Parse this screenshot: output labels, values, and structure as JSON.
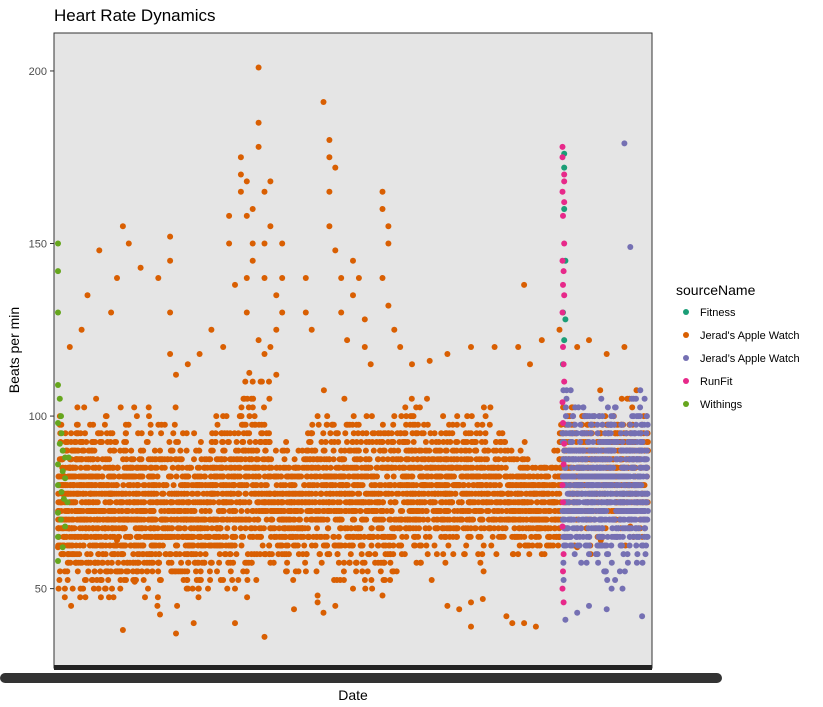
{
  "chart_data": {
    "type": "scatter",
    "title": "Heart Rate Dynamics",
    "xlabel": "Date",
    "ylabel": "Beats per min",
    "ylim": [
      27,
      211
    ],
    "yticks": [
      50,
      100,
      150,
      200
    ],
    "x_tick_labels": "dense, overplotted (illegible)",
    "grid": false,
    "panel_background": "#e5e5e5",
    "legend": {
      "title": "sourceName",
      "position": "right",
      "entries": [
        {
          "name": "Fitness",
          "color": "#1b9e77"
        },
        {
          "name": "Jerad's Apple Watch",
          "color": "#d95f02"
        },
        {
          "name": "Jerad’s Apple Watch",
          "color": "#7570b3"
        },
        {
          "name": "RunFit",
          "color": "#e7298a"
        },
        {
          "name": "Withings",
          "color": "#66a61e"
        }
      ]
    },
    "series": [
      {
        "name": "Fitness",
        "color": "#1b9e77",
        "points": [
          [
            0.858,
            176
          ],
          [
            0.858,
            172
          ],
          [
            0.858,
            160
          ],
          [
            0.86,
            145
          ],
          [
            0.856,
            130
          ],
          [
            0.86,
            128
          ],
          [
            0.858,
            122
          ],
          [
            0.856,
            115
          ]
        ]
      },
      {
        "name": "Jerad's Apple Watch",
        "color": "#d95f02",
        "bands": [
          {
            "x0": 0.0,
            "x1": 0.06,
            "lo": 42,
            "hi": 108,
            "count": 420
          },
          {
            "x0": 0.06,
            "x1": 0.14,
            "lo": 40,
            "hi": 108,
            "count": 420
          },
          {
            "x0": 0.14,
            "x1": 0.22,
            "lo": 38,
            "hi": 106,
            "count": 380
          },
          {
            "x0": 0.22,
            "x1": 0.26,
            "lo": 40,
            "hi": 102,
            "count": 180
          },
          {
            "x0": 0.26,
            "x1": 0.3,
            "lo": 44,
            "hi": 108,
            "count": 200
          },
          {
            "x0": 0.3,
            "x1": 0.36,
            "lo": 45,
            "hi": 118,
            "count": 260
          },
          {
            "x0": 0.36,
            "x1": 0.42,
            "lo": 48,
            "hi": 100,
            "count": 250
          },
          {
            "x0": 0.42,
            "x1": 0.5,
            "lo": 45,
            "hi": 110,
            "count": 340
          },
          {
            "x0": 0.5,
            "x1": 0.58,
            "lo": 43,
            "hi": 110,
            "count": 340
          },
          {
            "x0": 0.58,
            "x1": 0.66,
            "lo": 50,
            "hi": 110,
            "count": 360
          },
          {
            "x0": 0.66,
            "x1": 0.76,
            "lo": 52,
            "hi": 108,
            "count": 380
          },
          {
            "x0": 0.76,
            "x1": 0.85,
            "lo": 55,
            "hi": 94,
            "count": 360
          },
          {
            "x0": 0.85,
            "x1": 0.93,
            "lo": 55,
            "hi": 112,
            "count": 340
          },
          {
            "x0": 0.93,
            "x1": 1.0,
            "lo": 58,
            "hi": 110,
            "count": 300
          }
        ],
        "points": [
          [
            0.02,
            120
          ],
          [
            0.04,
            125
          ],
          [
            0.05,
            135
          ],
          [
            0.07,
            148
          ],
          [
            0.09,
            130
          ],
          [
            0.1,
            140
          ],
          [
            0.11,
            155
          ],
          [
            0.12,
            150
          ],
          [
            0.14,
            143
          ],
          [
            0.17,
            140
          ],
          [
            0.19,
            152
          ],
          [
            0.19,
            145
          ],
          [
            0.19,
            130
          ],
          [
            0.19,
            118
          ],
          [
            0.2,
            112
          ],
          [
            0.22,
            115
          ],
          [
            0.24,
            118
          ],
          [
            0.26,
            125
          ],
          [
            0.28,
            120
          ],
          [
            0.29,
            150
          ],
          [
            0.29,
            158
          ],
          [
            0.3,
            138
          ],
          [
            0.31,
            165
          ],
          [
            0.31,
            170
          ],
          [
            0.31,
            175
          ],
          [
            0.32,
            168
          ],
          [
            0.32,
            158
          ],
          [
            0.33,
            160
          ],
          [
            0.33,
            150
          ],
          [
            0.33,
            145
          ],
          [
            0.32,
            140
          ],
          [
            0.32,
            130
          ],
          [
            0.34,
            178
          ],
          [
            0.34,
            185
          ],
          [
            0.34,
            201
          ],
          [
            0.35,
            165
          ],
          [
            0.35,
            150
          ],
          [
            0.35,
            140
          ],
          [
            0.36,
            168
          ],
          [
            0.36,
            155
          ],
          [
            0.37,
            135
          ],
          [
            0.37,
            125
          ],
          [
            0.38,
            150
          ],
          [
            0.38,
            140
          ],
          [
            0.38,
            130
          ],
          [
            0.36,
            120
          ],
          [
            0.37,
            112
          ],
          [
            0.35,
            118
          ],
          [
            0.34,
            122
          ],
          [
            0.42,
            140
          ],
          [
            0.42,
            130
          ],
          [
            0.43,
            125
          ],
          [
            0.46,
            175
          ],
          [
            0.46,
            180
          ],
          [
            0.47,
            172
          ],
          [
            0.46,
            165
          ],
          [
            0.46,
            155
          ],
          [
            0.47,
            148
          ],
          [
            0.48,
            140
          ],
          [
            0.48,
            130
          ],
          [
            0.49,
            122
          ],
          [
            0.45,
            191
          ],
          [
            0.5,
            145
          ],
          [
            0.5,
            135
          ],
          [
            0.51,
            140
          ],
          [
            0.52,
            128
          ],
          [
            0.52,
            120
          ],
          [
            0.53,
            115
          ],
          [
            0.55,
            165
          ],
          [
            0.55,
            160
          ],
          [
            0.56,
            155
          ],
          [
            0.56,
            150
          ],
          [
            0.55,
            140
          ],
          [
            0.56,
            132
          ],
          [
            0.57,
            125
          ],
          [
            0.58,
            120
          ],
          [
            0.6,
            115
          ],
          [
            0.63,
            116
          ],
          [
            0.66,
            118
          ],
          [
            0.7,
            120
          ],
          [
            0.74,
            120
          ],
          [
            0.78,
            120
          ],
          [
            0.79,
            138
          ],
          [
            0.8,
            115
          ],
          [
            0.82,
            122
          ],
          [
            0.85,
            125
          ],
          [
            0.88,
            120
          ],
          [
            0.9,
            122
          ],
          [
            0.93,
            118
          ],
          [
            0.96,
            120
          ],
          [
            0.23,
            65
          ],
          [
            0.13,
            52
          ],
          [
            0.33,
            110
          ],
          [
            0.4,
            85
          ],
          [
            0.44,
            100
          ],
          [
            0.54,
            85
          ],
          [
            0.6,
            100
          ],
          [
            0.7,
            95
          ],
          [
            0.0,
            62
          ],
          [
            0.1,
            64
          ],
          [
            0.2,
            55
          ],
          [
            0.3,
            50
          ],
          [
            0.44,
            48
          ],
          [
            0.5,
            50
          ],
          [
            0.58,
            70
          ],
          [
            0.66,
            45
          ],
          [
            0.7,
            46
          ],
          [
            0.76,
            42
          ],
          [
            0.77,
            40
          ],
          [
            0.82,
            60
          ],
          [
            0.88,
            62
          ],
          [
            0.92,
            64
          ],
          [
            0.97,
            68
          ],
          [
            0.11,
            38
          ],
          [
            0.2,
            37
          ],
          [
            0.23,
            40
          ],
          [
            0.3,
            40
          ],
          [
            0.35,
            36
          ],
          [
            0.4,
            44
          ],
          [
            0.44,
            46
          ],
          [
            0.45,
            43
          ],
          [
            0.47,
            45
          ],
          [
            0.55,
            48
          ],
          [
            0.68,
            44
          ],
          [
            0.7,
            39
          ],
          [
            0.72,
            47
          ],
          [
            0.79,
            40
          ],
          [
            0.81,
            39
          ]
        ]
      },
      {
        "name": "Jerad’s Apple Watch",
        "color": "#7570b3",
        "bands": [
          {
            "x0": 0.855,
            "x1": 1.0,
            "lo": 48,
            "hi": 112,
            "count": 900
          }
        ],
        "points": [
          [
            0.96,
            179
          ],
          [
            0.97,
            149
          ],
          [
            0.86,
            41
          ],
          [
            0.88,
            43
          ],
          [
            0.99,
            42
          ],
          [
            0.9,
            45
          ],
          [
            0.93,
            44
          ]
        ]
      },
      {
        "name": "RunFit",
        "color": "#e7298a",
        "points": [
          [
            0.855,
            178
          ],
          [
            0.855,
            175
          ],
          [
            0.858,
            170
          ],
          [
            0.858,
            168
          ],
          [
            0.855,
            165
          ],
          [
            0.858,
            162
          ],
          [
            0.856,
            158
          ],
          [
            0.858,
            150
          ],
          [
            0.855,
            145
          ],
          [
            0.857,
            142
          ],
          [
            0.856,
            138
          ],
          [
            0.858,
            135
          ],
          [
            0.855,
            130
          ],
          [
            0.856,
            120
          ],
          [
            0.857,
            115
          ],
          [
            0.858,
            110
          ],
          [
            0.855,
            104
          ],
          [
            0.856,
            98
          ],
          [
            0.858,
            92
          ],
          [
            0.857,
            86
          ],
          [
            0.855,
            80
          ],
          [
            0.856,
            75
          ],
          [
            0.855,
            68
          ],
          [
            0.857,
            60
          ],
          [
            0.856,
            55
          ],
          [
            0.855,
            50
          ],
          [
            0.857,
            46
          ]
        ]
      },
      {
        "name": "Withings",
        "color": "#66a61e",
        "points": [
          [
            0.0,
            150
          ],
          [
            0.0,
            142
          ],
          [
            0.0,
            130
          ],
          [
            0.0,
            109
          ],
          [
            0.003,
            105
          ],
          [
            0.005,
            100
          ],
          [
            0.0,
            98
          ],
          [
            0.006,
            95
          ],
          [
            0.003,
            92
          ],
          [
            0.008,
            90
          ],
          [
            0.012,
            88
          ],
          [
            0.018,
            88
          ],
          [
            0.0,
            86
          ],
          [
            0.008,
            84
          ],
          [
            0.012,
            82
          ],
          [
            0.0,
            80
          ],
          [
            0.006,
            78
          ],
          [
            0.01,
            76
          ],
          [
            0.016,
            75
          ],
          [
            0.0,
            72
          ],
          [
            0.005,
            70
          ],
          [
            0.012,
            68
          ],
          [
            0.0,
            65
          ],
          [
            0.008,
            62
          ],
          [
            0.0,
            58
          ]
        ]
      }
    ]
  }
}
